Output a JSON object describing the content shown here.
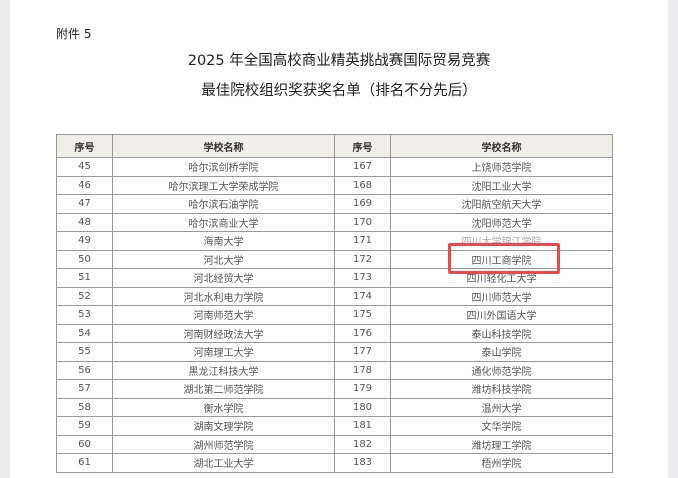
{
  "attachment_label": "附件 5",
  "title": "2025 年全国高校商业精英挑战赛国际贸易竞赛",
  "subtitle": "最佳院校组织奖获奖名单（排名不分先后）",
  "table": {
    "headers": [
      "序号",
      "学校名称",
      "序号",
      "学校名称"
    ],
    "rows": [
      [
        "45",
        "哈尔滨剑桥学院",
        "167",
        "上饶师范学院"
      ],
      [
        "46",
        "哈尔滨理工大学荣成学院",
        "168",
        "沈阳工业大学"
      ],
      [
        "47",
        "哈尔滨石油学院",
        "169",
        "沈阳航空航天大学"
      ],
      [
        "48",
        "哈尔滨商业大学",
        "170",
        "沈阳师范大学"
      ],
      [
        "49",
        "海南大学",
        "171",
        "四川大学锦江学院"
      ],
      [
        "50",
        "河北大学",
        "172",
        "四川工商学院"
      ],
      [
        "51",
        "河北经贸大学",
        "173",
        "四川轻化工大学"
      ],
      [
        "52",
        "河北水利电力学院",
        "174",
        "四川师范大学"
      ],
      [
        "53",
        "河南师范大学",
        "175",
        "四川外国语大学"
      ],
      [
        "54",
        "河南财经政法大学",
        "176",
        "泰山科技学院"
      ],
      [
        "55",
        "河南理工大学",
        "177",
        "泰山学院"
      ],
      [
        "56",
        "黑龙江科技大学",
        "178",
        "通化师范学院"
      ],
      [
        "57",
        "湖北第二师范学院",
        "179",
        "潍坊科技学院"
      ],
      [
        "58",
        "衡水学院",
        "180",
        "温州大学"
      ],
      [
        "59",
        "湖南文理学院",
        "181",
        "文华学院"
      ],
      [
        "60",
        "湖州师范学院",
        "182",
        "潍坊理工学院"
      ],
      [
        "61",
        "湖北工业大学",
        "183",
        "梧州学院"
      ]
    ]
  },
  "highlight_color": "#f0474a"
}
